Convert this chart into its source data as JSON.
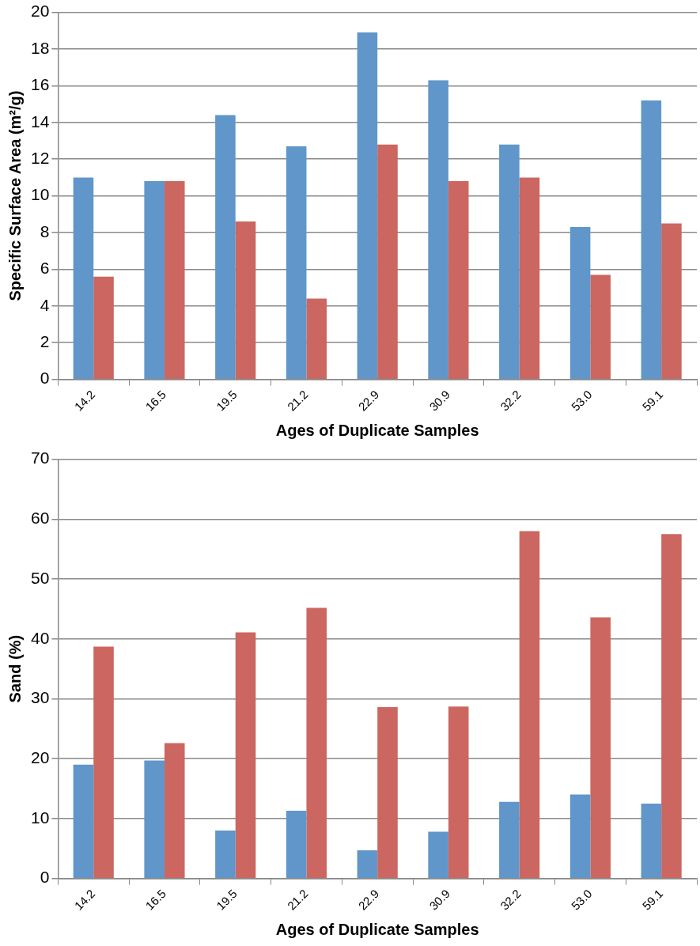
{
  "chart_data": [
    {
      "type": "bar",
      "xlabel": "Ages of Duplicate Samples",
      "ylabel": "Specific Surface Area (m²/g)",
      "categories": [
        "14.2",
        "16.5",
        "19.5",
        "21.2",
        "22.9",
        "30.9",
        "32.2",
        "53.0",
        "59.1"
      ],
      "series": [
        {
          "color": "#6096c9",
          "values": [
            11.0,
            10.8,
            14.4,
            12.7,
            18.9,
            16.3,
            12.8,
            8.3,
            15.2
          ]
        },
        {
          "color": "#cc6660",
          "values": [
            5.6,
            10.8,
            8.6,
            4.4,
            12.8,
            10.8,
            11.0,
            5.7,
            8.5
          ]
        }
      ],
      "ylim": [
        0,
        20
      ],
      "yticks": [
        0,
        2,
        4,
        6,
        8,
        10,
        12,
        14,
        16,
        18,
        20
      ],
      "grid": "y",
      "legend": false
    },
    {
      "type": "bar",
      "xlabel": "Ages of Duplicate Samples",
      "ylabel": "Sand (%)",
      "categories": [
        "14.2",
        "16.5",
        "19.5",
        "21.2",
        "22.9",
        "30.9",
        "32.2",
        "53.0",
        "59.1"
      ],
      "series": [
        {
          "color": "#6096c9",
          "values": [
            19.0,
            19.7,
            8.0,
            11.3,
            4.7,
            7.8,
            12.8,
            14.0,
            12.5
          ]
        },
        {
          "color": "#cc6660",
          "values": [
            38.7,
            22.6,
            41.1,
            45.2,
            28.6,
            28.7,
            58.0,
            43.6,
            57.5
          ]
        }
      ],
      "ylim": [
        0,
        70
      ],
      "yticks": [
        0,
        10,
        20,
        30,
        40,
        50,
        60,
        70
      ],
      "grid": "y",
      "legend": false
    }
  ]
}
